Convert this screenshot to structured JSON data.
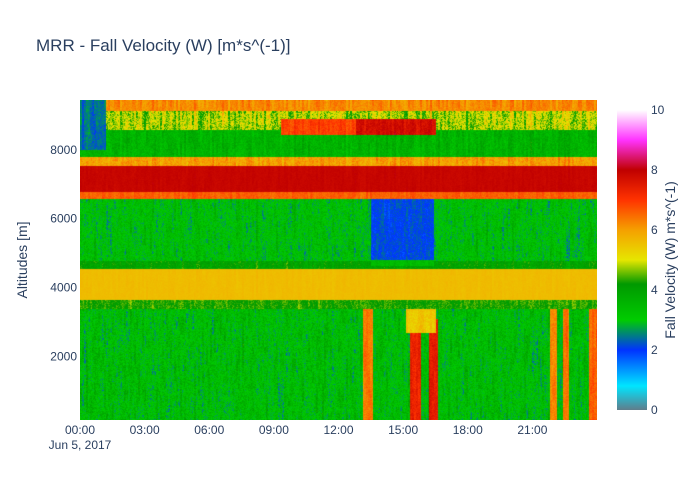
{
  "chart_data": {
    "type": "heatmap",
    "title": "MRR - Fall Velocity (W) [m*s^(-1)]",
    "xlabel": "",
    "ylabel": "Altitudes [m]",
    "x_ticks": [
      "00:00",
      "03:00",
      "06:00",
      "09:00",
      "12:00",
      "15:00",
      "18:00",
      "21:00"
    ],
    "x_tick_hours": [
      0,
      3,
      6,
      9,
      12,
      15,
      18,
      21
    ],
    "x_date_label": "Jun 5, 2017",
    "xlim_hours": [
      0,
      24
    ],
    "y_ticks": [
      2000,
      4000,
      6000,
      8000
    ],
    "ylim": [
      150,
      9450
    ],
    "colorbar": {
      "title": "Fall Velocity (W) m*s^(-1)",
      "ticks": [
        0,
        2,
        4,
        6,
        8,
        10
      ],
      "range": [
        0,
        10
      ],
      "colorscale": [
        [
          0.0,
          "#607d8b"
        ],
        [
          0.08,
          "#00e5ff"
        ],
        [
          0.2,
          "#0033ff"
        ],
        [
          0.3,
          "#00cc00"
        ],
        [
          0.42,
          "#009900"
        ],
        [
          0.5,
          "#e6e600"
        ],
        [
          0.6,
          "#f5a000"
        ],
        [
          0.7,
          "#ff3300"
        ],
        [
          0.8,
          "#c00000"
        ],
        [
          0.9,
          "#ff33ff"
        ],
        [
          1.0,
          "#ffffff"
        ]
      ]
    },
    "bands": [
      {
        "from_alt": 150,
        "to_alt": 3400,
        "base_value": 3.3,
        "noise": 1.0
      },
      {
        "from_alt": 3400,
        "to_alt": 3650,
        "base_value": 4.3,
        "noise": 0.5
      },
      {
        "from_alt": 3650,
        "to_alt": 4550,
        "base_value": 5.6,
        "noise": 0.12
      },
      {
        "from_alt": 4550,
        "to_alt": 4800,
        "base_value": 4.0,
        "noise": 0.6
      },
      {
        "from_alt": 4800,
        "to_alt": 6600,
        "base_value": 3.2,
        "noise": 0.9
      },
      {
        "from_alt": 6600,
        "to_alt": 6800,
        "base_value": 6.6,
        "noise": 0.4
      },
      {
        "from_alt": 6800,
        "to_alt": 7550,
        "base_value": 7.9,
        "noise": 0.15
      },
      {
        "from_alt": 7550,
        "to_alt": 7800,
        "base_value": 6.0,
        "noise": 0.6
      },
      {
        "from_alt": 7800,
        "to_alt": 8600,
        "base_value": 3.6,
        "noise": 0.7
      },
      {
        "from_alt": 8600,
        "to_alt": 9150,
        "base_value": 4.8,
        "noise": 1.0
      },
      {
        "from_alt": 9150,
        "to_alt": 9450,
        "base_value": 6.2,
        "noise": 0.4
      }
    ],
    "events": [
      {
        "from_hour": 13.1,
        "to_hour": 13.6,
        "from_alt": 150,
        "to_alt": 3400,
        "value": 6.3
      },
      {
        "from_hour": 15.3,
        "to_hour": 15.8,
        "from_alt": 150,
        "to_alt": 3000,
        "value": 7.3
      },
      {
        "from_hour": 16.2,
        "to_hour": 16.6,
        "from_alt": 150,
        "to_alt": 3100,
        "value": 7.5
      },
      {
        "from_hour": 15.1,
        "to_hour": 16.5,
        "from_alt": 2700,
        "to_alt": 3400,
        "value": 5.5
      },
      {
        "from_hour": 21.8,
        "to_hour": 22.1,
        "from_alt": 150,
        "to_alt": 3400,
        "value": 6.2
      },
      {
        "from_hour": 22.4,
        "to_hour": 22.7,
        "from_alt": 150,
        "to_alt": 3400,
        "value": 6.4
      },
      {
        "from_hour": 23.6,
        "to_hour": 24.0,
        "from_alt": 150,
        "to_alt": 3400,
        "value": 6.6
      },
      {
        "from_hour": 13.5,
        "to_hour": 16.4,
        "from_alt": 4800,
        "to_alt": 6600,
        "value": 2.1
      },
      {
        "from_hour": 13.5,
        "to_hour": 16.4,
        "from_alt": 4650,
        "to_alt": 4800,
        "value": 3.4
      },
      {
        "from_hour": 12.8,
        "to_hour": 16.5,
        "from_alt": 8450,
        "to_alt": 8900,
        "value": 7.7
      },
      {
        "from_hour": 9.3,
        "to_hour": 12.8,
        "from_alt": 8450,
        "to_alt": 8900,
        "value": 6.9
      },
      {
        "from_hour": 0.0,
        "to_hour": 1.2,
        "from_alt": 8000,
        "to_alt": 9450,
        "value": 2.4
      }
    ]
  }
}
